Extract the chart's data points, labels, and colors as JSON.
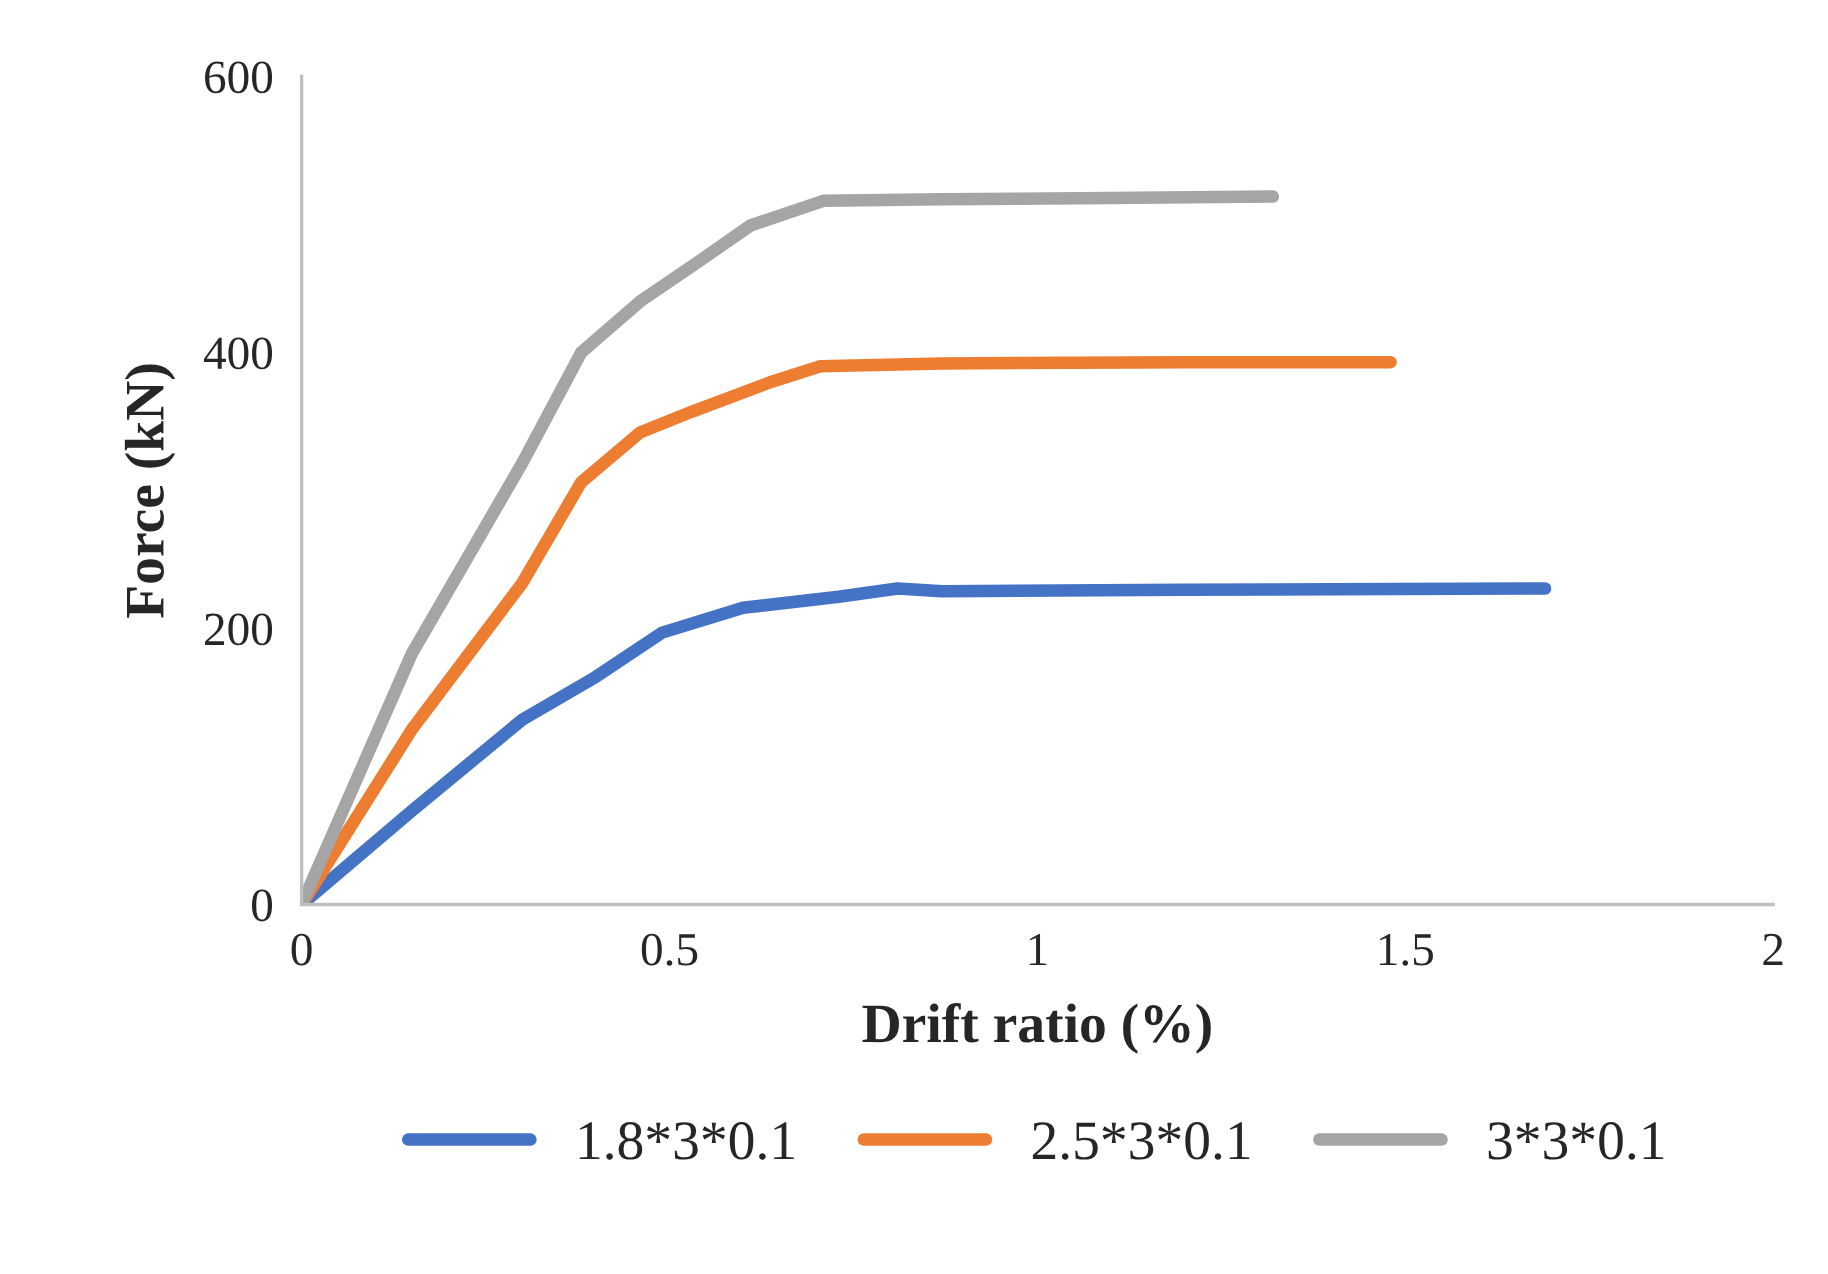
{
  "chart_data": {
    "type": "line",
    "xlabel": "Drift ratio (%)",
    "ylabel": "Force (kN)",
    "xlim": [
      0,
      2
    ],
    "xticks": [
      0,
      0.5,
      1,
      1.5,
      2
    ],
    "ylim": [
      0,
      600
    ],
    "yticks": [
      0,
      200,
      400,
      600
    ],
    "grid": false,
    "legend": "bottom",
    "marker": "none",
    "line_style": "solid",
    "series": [
      {
        "name": "1.8*3*0.1",
        "color": "#4472c4",
        "x": [
          0,
          0.15,
          0.3,
          0.4,
          0.49,
          0.6,
          0.73,
          0.81,
          0.87,
          1.2,
          1.69
        ],
        "values": [
          0,
          68,
          134,
          165,
          197,
          215,
          223,
          229,
          227,
          228,
          229
        ]
      },
      {
        "name": "2.5*3*0.1",
        "color": "#ed7d31",
        "x": [
          0,
          0.15,
          0.3,
          0.38,
          0.46,
          0.53,
          0.64,
          0.705,
          0.87,
          1.2,
          1.48
        ],
        "values": [
          0,
          127,
          233,
          306,
          342,
          357,
          379,
          390,
          392,
          393,
          393
        ]
      },
      {
        "name": "3*3*0.1",
        "color": "#a5a5a5",
        "x": [
          0,
          0.15,
          0.3,
          0.38,
          0.46,
          0.54,
          0.61,
          0.71,
          0.87,
          1.1,
          1.32
        ],
        "values": [
          0,
          182,
          320,
          400,
          437,
          466,
          492,
          510,
          511,
          512,
          513
        ]
      }
    ]
  }
}
